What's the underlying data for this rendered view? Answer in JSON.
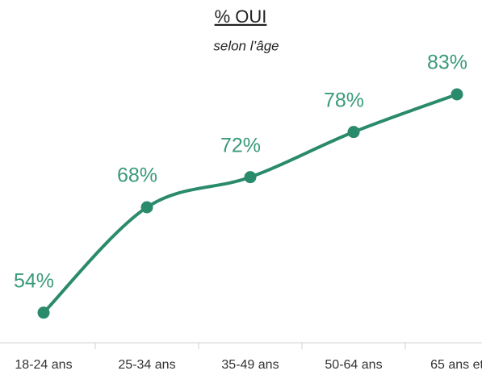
{
  "chart_data": {
    "type": "line",
    "title": "% OUI",
    "subtitle": "selon l’âge",
    "categories": [
      "18-24 ans",
      "25-34 ans",
      "35-49 ans",
      "50-64 ans",
      "65 ans et"
    ],
    "series": [
      {
        "name": "% OUI",
        "color": "#2a8a6c",
        "values": [
          54,
          68,
          72,
          78,
          83
        ],
        "value_labels": [
          "54%",
          "68%",
          "72%",
          "78%",
          "83%"
        ]
      }
    ],
    "ylim": [
      50,
      95
    ]
  }
}
